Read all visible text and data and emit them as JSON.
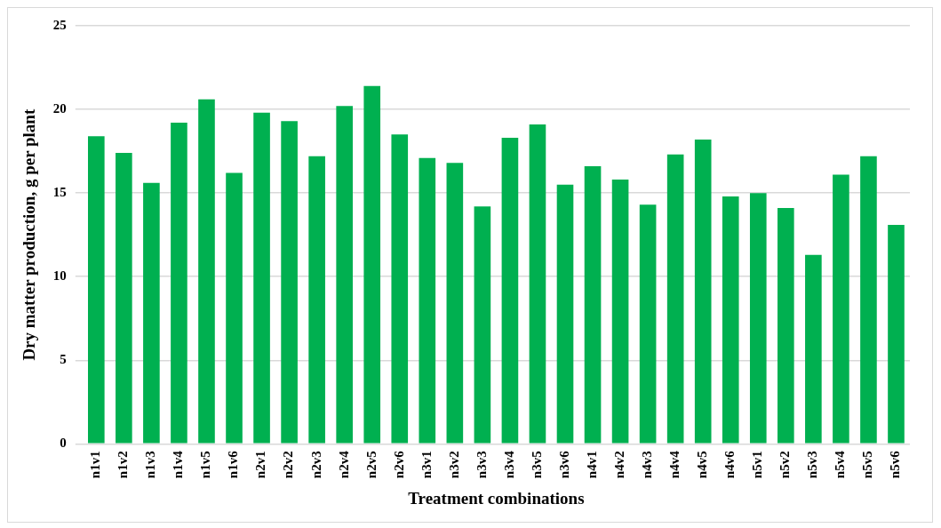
{
  "chart_data": {
    "type": "bar",
    "xlabel": "Treatment combinations",
    "ylabel": "Dry matter production, g per plant",
    "categories": [
      "n1v1",
      "n1v2",
      "n1v3",
      "n1v4",
      "n1v5",
      "n1v6",
      "n2v1",
      "n2v2",
      "n2v3",
      "n2v4",
      "n2v5",
      "n2v6",
      "n3v1",
      "n3v2",
      "n3v3",
      "n3v4",
      "n3v5",
      "n3v6",
      "n4v1",
      "n4v2",
      "n4v3",
      "n4v4",
      "n4v5",
      "n4v6",
      "n5v1",
      "n5v2",
      "n5v3",
      "n5v4",
      "n5v5",
      "n5v6"
    ],
    "values": [
      18.4,
      17.4,
      15.6,
      19.2,
      20.6,
      16.2,
      19.8,
      19.3,
      17.2,
      20.2,
      21.4,
      18.5,
      17.1,
      16.8,
      14.2,
      18.3,
      19.1,
      15.5,
      16.6,
      15.8,
      14.3,
      17.3,
      18.2,
      14.8,
      15.0,
      14.1,
      11.3,
      16.1,
      17.2,
      13.1
    ],
    "color": "#00b050",
    "ylim": [
      0,
      25
    ],
    "yticks": [
      0,
      5,
      10,
      15,
      20,
      25
    ],
    "grid": "y"
  }
}
